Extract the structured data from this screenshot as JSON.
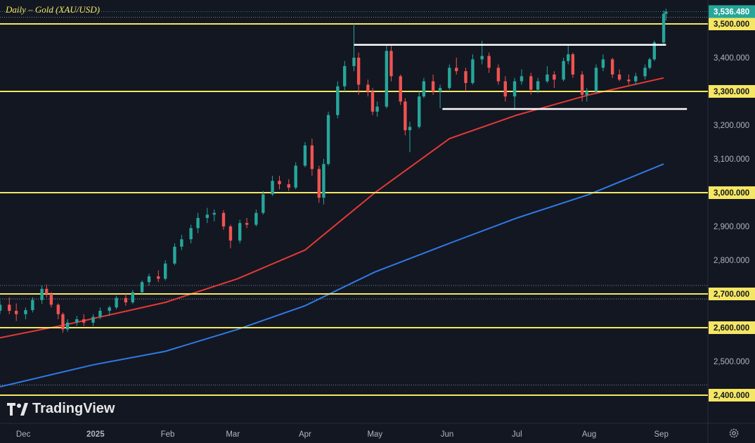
{
  "chart_title": "Daily – Gold (XAU/USD)",
  "brand": "TradingView",
  "icons": {
    "logo": "tradingview-logo-icon",
    "settings": "gear-icon"
  },
  "colors": {
    "background": "#131722",
    "up": "#26a69a",
    "down": "#ef5350",
    "level_line": "#f5e663",
    "ma_fast": "#e53935",
    "ma_slow": "#2f7ae5",
    "channel": "#ffffff",
    "last_price_bg": "#26a69a"
  },
  "chart_data": {
    "type": "candlestick",
    "symbol": "XAU/USD",
    "interval": "Daily",
    "ylim": [
      2375,
      3555
    ],
    "y_ticks": [
      "2,400.000",
      "2,500.000",
      "2,600.000",
      "2,700.000",
      "2,800.000",
      "2,900.000",
      "3,000.000",
      "3,100.000",
      "3,200.000",
      "3,300.000",
      "3,400.000",
      "3,500.000"
    ],
    "x_ticks": [
      {
        "label": "Dec",
        "date": "2024-12-01"
      },
      {
        "label": "2025",
        "date": "2025-01-01"
      },
      {
        "label": "Feb",
        "date": "2025-02-01"
      },
      {
        "label": "Mar",
        "date": "2025-03-01"
      },
      {
        "label": "Apr",
        "date": "2025-04-01"
      },
      {
        "label": "May",
        "date": "2025-05-01"
      },
      {
        "label": "Jun",
        "date": "2025-06-01"
      },
      {
        "label": "Jul",
        "date": "2025-07-01"
      },
      {
        "label": "Aug",
        "date": "2025-08-01"
      },
      {
        "label": "Sep",
        "date": "2025-09-01"
      }
    ],
    "xlim": [
      "2024-11-21",
      "2025-09-21"
    ],
    "last_price": "3,536.480",
    "horizontal_levels": [
      {
        "label": "3,500.000",
        "value": 3500
      },
      {
        "label": "3,300.000",
        "value": 3300
      },
      {
        "label": "3,000.000",
        "value": 3000
      },
      {
        "label": "2,700.000",
        "value": 2700
      },
      {
        "label": "2,600.000",
        "value": 2600
      },
      {
        "label": "2,400.000",
        "value": 2400
      }
    ],
    "range_lines": [
      {
        "value": 3438,
        "from": "2025-04-22",
        "to": "2025-09-03"
      },
      {
        "value": 3248,
        "from": "2025-05-30",
        "to": "2025-09-12"
      }
    ],
    "moving_averages": [
      {
        "color": "#e53935",
        "points": [
          [
            "2024-11-21",
            2570
          ],
          [
            "2024-12-20",
            2610
          ],
          [
            "2025-01-31",
            2675
          ],
          [
            "2025-03-03",
            2745
          ],
          [
            "2025-04-01",
            2830
          ],
          [
            "2025-05-01",
            3000
          ],
          [
            "2025-06-02",
            3160
          ],
          [
            "2025-07-01",
            3230
          ],
          [
            "2025-08-01",
            3290
          ],
          [
            "2025-09-02",
            3340
          ]
        ]
      },
      {
        "color": "#2f7ae5",
        "points": [
          [
            "2024-11-21",
            2425
          ],
          [
            "2024-12-31",
            2490
          ],
          [
            "2025-01-31",
            2530
          ],
          [
            "2025-03-03",
            2595
          ],
          [
            "2025-04-01",
            2665
          ],
          [
            "2025-05-01",
            2765
          ],
          [
            "2025-06-02",
            2850
          ],
          [
            "2025-07-01",
            2925
          ],
          [
            "2025-08-01",
            2995
          ],
          [
            "2025-09-02",
            3085
          ]
        ]
      }
    ],
    "candles": [
      [
        "2024-11-21",
        2650,
        2680,
        2640,
        2668
      ],
      [
        "2024-11-25",
        2668,
        2690,
        2640,
        2650
      ],
      [
        "2024-11-28",
        2650,
        2672,
        2620,
        2640
      ],
      [
        "2024-12-02",
        2640,
        2660,
        2625,
        2652
      ],
      [
        "2024-12-05",
        2652,
        2690,
        2645,
        2682
      ],
      [
        "2024-12-09",
        2682,
        2725,
        2670,
        2715
      ],
      [
        "2024-12-11",
        2715,
        2728,
        2690,
        2700
      ],
      [
        "2024-12-13",
        2700,
        2706,
        2660,
        2668
      ],
      [
        "2024-12-16",
        2668,
        2672,
        2625,
        2640
      ],
      [
        "2024-12-18",
        2640,
        2645,
        2585,
        2595
      ],
      [
        "2024-12-20",
        2595,
        2625,
        2588,
        2615
      ],
      [
        "2024-12-24",
        2615,
        2635,
        2605,
        2625
      ],
      [
        "2024-12-27",
        2625,
        2640,
        2605,
        2615
      ],
      [
        "2024-12-31",
        2615,
        2640,
        2605,
        2632
      ],
      [
        "2025-01-03",
        2632,
        2660,
        2625,
        2650
      ],
      [
        "2025-01-07",
        2650,
        2665,
        2635,
        2660
      ],
      [
        "2025-01-10",
        2660,
        2695,
        2655,
        2688
      ],
      [
        "2025-01-14",
        2688,
        2700,
        2665,
        2675
      ],
      [
        "2025-01-17",
        2675,
        2712,
        2670,
        2705
      ],
      [
        "2025-01-21",
        2705,
        2740,
        2700,
        2735
      ],
      [
        "2025-01-24",
        2735,
        2760,
        2725,
        2752
      ],
      [
        "2025-01-28",
        2752,
        2770,
        2735,
        2745
      ],
      [
        "2025-01-31",
        2745,
        2800,
        2740,
        2790
      ],
      [
        "2025-02-04",
        2790,
        2850,
        2785,
        2840
      ],
      [
        "2025-02-07",
        2840,
        2875,
        2830,
        2862
      ],
      [
        "2025-02-11",
        2862,
        2905,
        2850,
        2895
      ],
      [
        "2025-02-14",
        2895,
        2940,
        2880,
        2925
      ],
      [
        "2025-02-18",
        2925,
        2955,
        2910,
        2935
      ],
      [
        "2025-02-21",
        2935,
        2950,
        2915,
        2940
      ],
      [
        "2025-02-25",
        2940,
        2948,
        2890,
        2900
      ],
      [
        "2025-02-28",
        2900,
        2905,
        2835,
        2858
      ],
      [
        "2025-03-04",
        2858,
        2920,
        2850,
        2910
      ],
      [
        "2025-03-07",
        2910,
        2925,
        2895,
        2905
      ],
      [
        "2025-03-11",
        2905,
        2950,
        2900,
        2940
      ],
      [
        "2025-03-14",
        2940,
        3005,
        2935,
        2995
      ],
      [
        "2025-03-18",
        2995,
        3050,
        2990,
        3035
      ],
      [
        "2025-03-21",
        3035,
        3050,
        3010,
        3025
      ],
      [
        "2025-03-25",
        3025,
        3040,
        3005,
        3015
      ],
      [
        "2025-03-28",
        3015,
        3090,
        3010,
        3080
      ],
      [
        "2025-04-01",
        3080,
        3150,
        3075,
        3140
      ],
      [
        "2025-04-04",
        3140,
        3160,
        3050,
        3070
      ],
      [
        "2025-04-07",
        3070,
        3080,
        2970,
        2985
      ],
      [
        "2025-04-09",
        2985,
        3100,
        2965,
        3085
      ],
      [
        "2025-04-11",
        3085,
        3240,
        3080,
        3230
      ],
      [
        "2025-04-15",
        3230,
        3330,
        3220,
        3315
      ],
      [
        "2025-04-18",
        3315,
        3390,
        3300,
        3375
      ],
      [
        "2025-04-22",
        3375,
        3500,
        3360,
        3400
      ],
      [
        "2025-04-24",
        3400,
        3415,
        3290,
        3320
      ],
      [
        "2025-04-28",
        3320,
        3335,
        3285,
        3300
      ],
      [
        "2025-04-30",
        3300,
        3310,
        3230,
        3240
      ],
      [
        "2025-05-02",
        3240,
        3270,
        3225,
        3255
      ],
      [
        "2025-05-06",
        3255,
        3440,
        3250,
        3420
      ],
      [
        "2025-05-08",
        3420,
        3435,
        3330,
        3345
      ],
      [
        "2025-05-12",
        3345,
        3350,
        3260,
        3270
      ],
      [
        "2025-05-14",
        3270,
        3280,
        3170,
        3185
      ],
      [
        "2025-05-16",
        3185,
        3210,
        3120,
        3195
      ],
      [
        "2025-05-20",
        3195,
        3300,
        3190,
        3285
      ],
      [
        "2025-05-22",
        3285,
        3340,
        3280,
        3330
      ],
      [
        "2025-05-26",
        3330,
        3350,
        3290,
        3300
      ],
      [
        "2025-05-29",
        3300,
        3320,
        3250,
        3310
      ],
      [
        "2025-06-02",
        3310,
        3380,
        3305,
        3370
      ],
      [
        "2025-06-05",
        3370,
        3400,
        3350,
        3360
      ],
      [
        "2025-06-09",
        3360,
        3370,
        3300,
        3325
      ],
      [
        "2025-06-12",
        3325,
        3410,
        3320,
        3395
      ],
      [
        "2025-06-16",
        3395,
        3450,
        3380,
        3405
      ],
      [
        "2025-06-19",
        3405,
        3415,
        3355,
        3370
      ],
      [
        "2025-06-23",
        3370,
        3380,
        3320,
        3330
      ],
      [
        "2025-06-26",
        3330,
        3345,
        3270,
        3285
      ],
      [
        "2025-06-30",
        3285,
        3340,
        3250,
        3330
      ],
      [
        "2025-07-03",
        3330,
        3365,
        3320,
        3345
      ],
      [
        "2025-07-07",
        3345,
        3355,
        3290,
        3305
      ],
      [
        "2025-07-10",
        3305,
        3340,
        3295,
        3330
      ],
      [
        "2025-07-14",
        3330,
        3375,
        3325,
        3350
      ],
      [
        "2025-07-17",
        3350,
        3360,
        3310,
        3335
      ],
      [
        "2025-07-21",
        3335,
        3400,
        3330,
        3390
      ],
      [
        "2025-07-23",
        3390,
        3440,
        3380,
        3410
      ],
      [
        "2025-07-25",
        3410,
        3415,
        3340,
        3350
      ],
      [
        "2025-07-29",
        3350,
        3360,
        3270,
        3290
      ],
      [
        "2025-07-31",
        3290,
        3310,
        3270,
        3300
      ],
      [
        "2025-08-04",
        3300,
        3380,
        3295,
        3370
      ],
      [
        "2025-08-07",
        3370,
        3410,
        3360,
        3395
      ],
      [
        "2025-08-11",
        3395,
        3400,
        3340,
        3350
      ],
      [
        "2025-08-14",
        3350,
        3365,
        3330,
        3335
      ],
      [
        "2025-08-18",
        3335,
        3350,
        3320,
        3330
      ],
      [
        "2025-08-21",
        3330,
        3355,
        3320,
        3345
      ],
      [
        "2025-08-25",
        3345,
        3380,
        3335,
        3370
      ],
      [
        "2025-08-27",
        3370,
        3400,
        3365,
        3395
      ],
      [
        "2025-08-29",
        3395,
        3450,
        3390,
        3445
      ],
      [
        "2025-09-02",
        3445,
        3540,
        3440,
        3530
      ],
      [
        "2025-09-03",
        3530,
        3545,
        3510,
        3536
      ]
    ]
  }
}
